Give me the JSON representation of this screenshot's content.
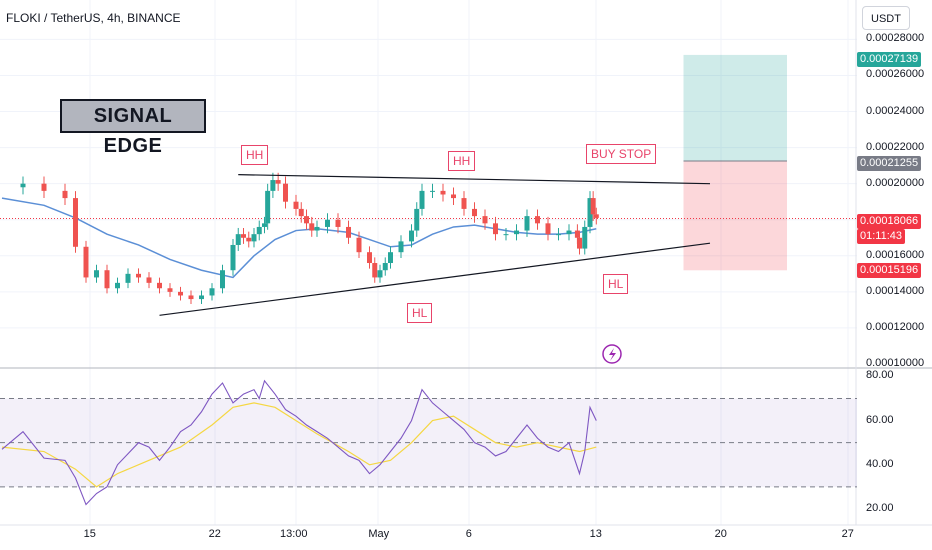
{
  "header": {
    "title": "FLOKI / TetherUS, 4h, BINANCE"
  },
  "currency_button": "USDT",
  "brand_label": "SIGNAL EDGE",
  "colors": {
    "accent_red": "#e8446a",
    "target_green": "#26a69a",
    "ma_blue": "#5b8fd6",
    "rsi_purple": "#7e57c2",
    "rsi_ma_yellow": "#f5d742"
  },
  "annotations": {
    "hh_left": "HH",
    "hh_mid": "HH",
    "hl_mid": "HL",
    "hl_right": "HL",
    "buy_stop": "BUY STOP"
  },
  "price_tags": {
    "target": "0.00027139",
    "entry": "0.00021255",
    "current": "0.00018066",
    "countdown": "01:11:43",
    "stop": "0.00015196"
  },
  "chart_data": {
    "type": "candlestick",
    "title": "FLOKI / TetherUS, 4h, BINANCE",
    "price_axis": {
      "ticks": [
        "0.00028000",
        "0.00026000",
        "0.00024000",
        "0.00022000",
        "0.00020000",
        "0.00016000",
        "0.00014000",
        "0.00012000",
        "0.00010000"
      ],
      "range": [
        0.0001,
        0.000282
      ]
    },
    "rsi_axis": {
      "ticks": [
        "80.00",
        "60.00",
        "40.00",
        "20.00"
      ],
      "range": [
        15,
        82
      ],
      "bands": [
        30,
        50,
        70
      ]
    },
    "x_ticks": [
      "15",
      "22",
      "13:00",
      "May",
      "6",
      "13",
      "20",
      "27"
    ],
    "price_path": [
      [
        0,
        0.000198
      ],
      [
        2,
        0.0002
      ],
      [
        4,
        0.000196
      ],
      [
        6,
        0.000192
      ],
      [
        7,
        0.000165
      ],
      [
        8,
        0.000148
      ],
      [
        9,
        0.000152
      ],
      [
        10,
        0.000142
      ],
      [
        11,
        0.000145
      ],
      [
        12,
        0.00015
      ],
      [
        13,
        0.000148
      ],
      [
        14,
        0.000145
      ],
      [
        15,
        0.000142
      ],
      [
        16,
        0.00014
      ],
      [
        17,
        0.000138
      ],
      [
        18,
        0.000136
      ],
      [
        19,
        0.000138
      ],
      [
        20,
        0.000142
      ],
      [
        21,
        0.000152
      ],
      [
        22,
        0.000166
      ],
      [
        22.5,
        0.000172
      ],
      [
        23,
        0.00017
      ],
      [
        23.5,
        0.000168
      ],
      [
        24,
        0.000172
      ],
      [
        24.5,
        0.000176
      ],
      [
        25,
        0.000178
      ],
      [
        25.3,
        0.000196
      ],
      [
        25.8,
        0.000202
      ],
      [
        26.3,
        0.0002
      ],
      [
        27,
        0.00019
      ],
      [
        28,
        0.000186
      ],
      [
        28.5,
        0.000182
      ],
      [
        29,
        0.000178
      ],
      [
        29.5,
        0.000174
      ],
      [
        30,
        0.000176
      ],
      [
        31,
        0.00018
      ],
      [
        32,
        0.000176
      ],
      [
        33,
        0.00017
      ],
      [
        34,
        0.000162
      ],
      [
        35,
        0.000156
      ],
      [
        35.5,
        0.000148
      ],
      [
        36,
        0.000152
      ],
      [
        36.5,
        0.000156
      ],
      [
        37,
        0.000162
      ],
      [
        38,
        0.000168
      ],
      [
        39,
        0.000174
      ],
      [
        39.5,
        0.000186
      ],
      [
        40,
        0.000196
      ],
      [
        41,
        0.000196
      ],
      [
        42,
        0.000194
      ],
      [
        43,
        0.000192
      ],
      [
        44,
        0.000186
      ],
      [
        45,
        0.000182
      ],
      [
        46,
        0.000178
      ],
      [
        47,
        0.000172
      ],
      [
        48,
        0.000172
      ],
      [
        49,
        0.000174
      ],
      [
        50,
        0.000182
      ],
      [
        51,
        0.000178
      ],
      [
        52,
        0.000172
      ],
      [
        53,
        0.000172
      ],
      [
        54,
        0.000174
      ],
      [
        54.8,
        0.00017
      ],
      [
        55,
        0.000164
      ],
      [
        55.5,
        0.000176
      ],
      [
        56,
        0.000192
      ],
      [
        56.3,
        0.000183
      ],
      [
        56.6,
        0.000181
      ]
    ],
    "ma_path": [
      [
        0,
        0.000192
      ],
      [
        4,
        0.000188
      ],
      [
        7,
        0.000181
      ],
      [
        10,
        0.000172
      ],
      [
        13,
        0.000166
      ],
      [
        16,
        0.000158
      ],
      [
        19,
        0.000152
      ],
      [
        22,
        0.000148
      ],
      [
        24,
        0.00016
      ],
      [
        26,
        0.000169
      ],
      [
        28,
        0.000174
      ],
      [
        30,
        0.000175
      ],
      [
        33,
        0.000173
      ],
      [
        35,
        0.000169
      ],
      [
        37,
        0.000165
      ],
      [
        39,
        0.000166
      ],
      [
        41,
        0.000172
      ],
      [
        43,
        0.000176
      ],
      [
        45,
        0.000177
      ],
      [
        47,
        0.000175
      ],
      [
        49,
        0.000173
      ],
      [
        51,
        0.000172
      ],
      [
        53,
        0.000172
      ],
      [
        55,
        0.000173
      ],
      [
        56.6,
        0.000175
      ]
    ],
    "resistance_line": [
      [
        0.000205,
        22.5
      ],
      [
        0.0002,
        66.0
      ]
    ],
    "support_line": [
      [
        0.000127,
        15.0
      ],
      [
        0.000167,
        66.0
      ]
    ],
    "rsi_path": [
      [
        0,
        47
      ],
      [
        2,
        55
      ],
      [
        4,
        43
      ],
      [
        6,
        42
      ],
      [
        7,
        34
      ],
      [
        8,
        22
      ],
      [
        9,
        27
      ],
      [
        10,
        30
      ],
      [
        11,
        40
      ],
      [
        12,
        45
      ],
      [
        13,
        50
      ],
      [
        14,
        48
      ],
      [
        15,
        42
      ],
      [
        16,
        48
      ],
      [
        17,
        55
      ],
      [
        18,
        58
      ],
      [
        19,
        64
      ],
      [
        20,
        72
      ],
      [
        21,
        77
      ],
      [
        22,
        68
      ],
      [
        23,
        72
      ],
      [
        24,
        74
      ],
      [
        24.5,
        70
      ],
      [
        25,
        78
      ],
      [
        26,
        72
      ],
      [
        27,
        65
      ],
      [
        28,
        62
      ],
      [
        29,
        58
      ],
      [
        30,
        55
      ],
      [
        31,
        52
      ],
      [
        32,
        48
      ],
      [
        33,
        44
      ],
      [
        34,
        42
      ],
      [
        35,
        36
      ],
      [
        36,
        40
      ],
      [
        37,
        46
      ],
      [
        38,
        52
      ],
      [
        39,
        60
      ],
      [
        40,
        74
      ],
      [
        41,
        68
      ],
      [
        42,
        64
      ],
      [
        43,
        60
      ],
      [
        44,
        56
      ],
      [
        45,
        50
      ],
      [
        46,
        48
      ],
      [
        47,
        44
      ],
      [
        48,
        46
      ],
      [
        49,
        52
      ],
      [
        50,
        58
      ],
      [
        51,
        52
      ],
      [
        52,
        48
      ],
      [
        53,
        46
      ],
      [
        54,
        50
      ],
      [
        55,
        36
      ],
      [
        55.5,
        46
      ],
      [
        56,
        66
      ],
      [
        56.6,
        60
      ]
    ],
    "rsi_ma_path": [
      [
        0,
        48
      ],
      [
        4,
        46
      ],
      [
        7,
        38
      ],
      [
        9,
        30
      ],
      [
        11,
        36
      ],
      [
        14,
        42
      ],
      [
        17,
        48
      ],
      [
        20,
        58
      ],
      [
        22,
        66
      ],
      [
        24,
        68
      ],
      [
        26,
        66
      ],
      [
        28,
        60
      ],
      [
        30,
        54
      ],
      [
        33,
        46
      ],
      [
        35,
        40
      ],
      [
        37,
        42
      ],
      [
        39,
        50
      ],
      [
        41,
        60
      ],
      [
        43,
        62
      ],
      [
        45,
        56
      ],
      [
        47,
        50
      ],
      [
        49,
        48
      ],
      [
        51,
        50
      ],
      [
        53,
        48
      ],
      [
        55,
        46
      ],
      [
        56.6,
        48
      ]
    ],
    "position": {
      "target": 0.00027139,
      "entry": 0.00021255,
      "stop": 0.00015196,
      "start_bar": 63,
      "end_bar": 72
    }
  }
}
